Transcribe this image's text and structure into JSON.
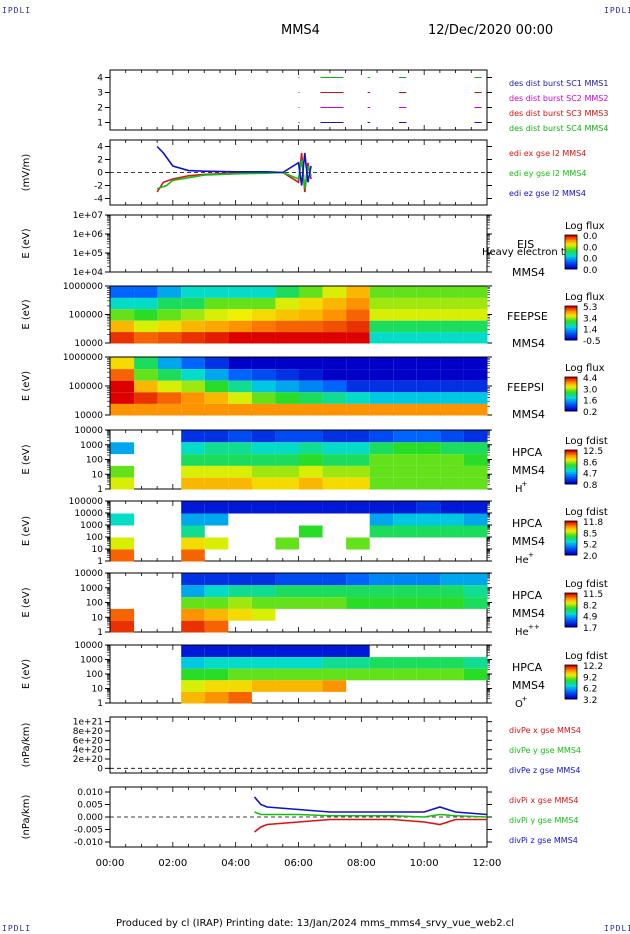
{
  "corners": {
    "tl": "IPDLI",
    "tr": "IPDLI",
    "bl": "IPDLI",
    "br": "IPDLI"
  },
  "header": {
    "spacecraft": "MMS4",
    "date": "12/Dec/2020 00:00"
  },
  "footer": {
    "text": "Produced by cl (IRAP)   Printing date: 13/Jan/2024   mms_mms4_srvy_vue_web2.cl"
  },
  "colors": {
    "mms1": "#1a1aa8",
    "mms2": "#d000d0",
    "mms3": "#d01010",
    "mms4": "#10b010",
    "red": "#e01010",
    "green": "#10c010",
    "blue": "#1010d0"
  },
  "chart_data": [
    {
      "type": "line",
      "id": "burst",
      "yticks": [
        "1",
        "2",
        "3",
        "4"
      ],
      "ylim": [
        0.5,
        4.5
      ],
      "legend": [
        "des dist burst SC1 MMS1",
        "des dist burst SC2 MMS2",
        "des dist burst SC3 MMS3",
        "des dist burst SC4 MMS4"
      ],
      "series": [
        {
          "name": "des dist burst SC4 MMS4",
          "y": 4,
          "segments": [
            [
              6.0,
              6.0
            ],
            [
              6.7,
              7.4
            ],
            [
              8.2,
              8.25
            ],
            [
              9.2,
              9.4
            ],
            [
              11.6,
              11.8
            ]
          ]
        },
        {
          "name": "des dist burst SC3 MMS3",
          "y": 3,
          "segments": [
            [
              6.0,
              6.0
            ],
            [
              6.7,
              7.4
            ],
            [
              8.2,
              8.25
            ],
            [
              9.2,
              9.4
            ],
            [
              11.6,
              11.8
            ]
          ]
        },
        {
          "name": "des dist burst SC2 MMS2",
          "y": 2,
          "segments": [
            [
              6.0,
              6.0
            ],
            [
              6.7,
              7.4
            ],
            [
              8.2,
              8.25
            ],
            [
              9.2,
              9.4
            ],
            [
              11.6,
              11.8
            ]
          ]
        },
        {
          "name": "des dist burst SC1 MMS1",
          "y": 1,
          "segments": [
            [
              6.0,
              6.0
            ],
            [
              6.7,
              7.4
            ],
            [
              8.2,
              8.25
            ],
            [
              9.2,
              9.4
            ],
            [
              11.6,
              11.8
            ]
          ]
        }
      ]
    },
    {
      "type": "line",
      "id": "edi",
      "ylabel": "(mV/m)",
      "yticks": [
        "-4",
        "-2",
        "0",
        "2",
        "4"
      ],
      "ylim": [
        -5,
        5
      ],
      "legend": [
        "edi ex gse l2 MMS4",
        "edi ey gse l2 MMS4",
        "edi ez gse l2 MMS4"
      ],
      "series": [
        {
          "name": "edi ex gse l2 MMS4",
          "x": [
            1.5,
            1.7,
            2.0,
            2.5,
            3.0,
            4.0,
            5.0,
            5.5,
            6.0,
            6.1,
            6.2,
            6.3,
            6.4
          ],
          "y": [
            -3.0,
            -1.5,
            -1.0,
            -0.5,
            -0.3,
            -0.1,
            0,
            0,
            -1.5,
            3.0,
            -3.0,
            1.5,
            -1.0
          ]
        },
        {
          "name": "edi ey gse l2 MMS4",
          "x": [
            1.5,
            1.8,
            2.0,
            2.5,
            3.0,
            4.0,
            5.0,
            5.5,
            6.0,
            6.1,
            6.2,
            6.3,
            6.4
          ],
          "y": [
            -2.5,
            -2.0,
            -1.2,
            -0.8,
            -0.4,
            -0.2,
            -0.1,
            0,
            -1.0,
            2.0,
            -2.5,
            1.0,
            -0.5
          ]
        },
        {
          "name": "edi ez gse l2 MMS4",
          "x": [
            1.5,
            1.7,
            2.0,
            2.5,
            3.0,
            4.0,
            5.0,
            5.5,
            6.0,
            6.1,
            6.2,
            6.3,
            6.4
          ],
          "y": [
            4.0,
            3.0,
            1.0,
            0.3,
            0.2,
            0.1,
            0.1,
            0,
            1.5,
            -2.0,
            3.0,
            -1.5,
            1.0
          ]
        }
      ]
    },
    {
      "type": "heatmap",
      "id": "eis",
      "ylabel": "E (eV)",
      "yticks": [
        "1e+04",
        "1e+05",
        "1e+06",
        "1e+07"
      ],
      "instrument": [
        "EIS",
        "Heavy electron to",
        "MMS4"
      ],
      "cbar_title": "Log flux",
      "cbar_ticks": [
        "0.0",
        "0.0",
        "0.0",
        "0.0"
      ],
      "cells": []
    },
    {
      "type": "heatmap",
      "id": "feepse",
      "ylabel": "E (eV)",
      "yticks": [
        "10000",
        "100000",
        "1000000"
      ],
      "instrument": [
        "FEEPSE",
        "MMS4"
      ],
      "cbar_title": "Log flux",
      "cbar_ticks": [
        "5.3",
        "3.4",
        "1.4",
        "-0.5"
      ],
      "cells": [
        [
          0.2,
          0.2,
          0.3,
          0.4,
          0.4,
          0.4,
          0.4,
          0.5,
          0.6,
          0.7,
          0.8,
          0.6,
          0.6,
          0.6,
          0.6,
          0.6
        ],
        [
          0.4,
          0.4,
          0.5,
          0.5,
          0.6,
          0.6,
          0.6,
          0.7,
          0.75,
          0.8,
          0.85,
          0.65,
          0.65,
          0.65,
          0.65,
          0.65
        ],
        [
          0.6,
          0.55,
          0.6,
          0.65,
          0.7,
          0.72,
          0.75,
          0.78,
          0.8,
          0.85,
          0.9,
          0.7,
          0.7,
          0.7,
          0.7,
          0.7
        ],
        [
          0.8,
          0.7,
          0.75,
          0.8,
          0.82,
          0.85,
          0.88,
          0.9,
          0.9,
          0.92,
          0.95,
          0.5,
          0.5,
          0.5,
          0.5,
          0.5
        ],
        [
          0.95,
          0.9,
          0.92,
          0.95,
          0.97,
          1,
          1,
          1,
          1,
          1,
          1,
          0.4,
          0.4,
          0.4,
          0.4,
          0.4
        ]
      ]
    },
    {
      "type": "heatmap",
      "id": "feepsi",
      "ylabel": "E (eV)",
      "yticks": [
        "10000",
        "100000",
        "1000000"
      ],
      "instrument": [
        "FEEPSI",
        "MMS4"
      ],
      "cbar_title": "Log flux",
      "cbar_ticks": [
        "4.4",
        "3.0",
        "1.6",
        "0.2"
      ],
      "cells": [
        [
          0.75,
          0.5,
          0.3,
          0.2,
          0.1,
          0.0,
          0.0,
          0.0,
          0.0,
          0.0,
          0.0,
          0.0,
          0.0,
          0.0,
          0.0,
          0.0
        ],
        [
          0.9,
          0.6,
          0.5,
          0.4,
          0.3,
          0.2,
          0.15,
          0.1,
          0.05,
          0.0,
          0.0,
          0.0,
          0.0,
          0.0,
          0.0,
          0.0
        ],
        [
          1,
          0.8,
          0.7,
          0.65,
          0.55,
          0.45,
          0.35,
          0.3,
          0.25,
          0.2,
          0.1,
          0.1,
          0.1,
          0.1,
          0.1,
          0.1
        ],
        [
          1,
          0.95,
          0.9,
          0.85,
          0.8,
          0.7,
          0.6,
          0.55,
          0.5,
          0.45,
          0.4,
          0.35,
          0.35,
          0.35,
          0.35,
          0.35
        ],
        [
          0.85,
          0.85,
          0.85,
          0.85,
          0.85,
          0.85,
          0.85,
          0.85,
          0.85,
          0.85,
          0.85,
          0.85,
          0.85,
          0.85,
          0.85,
          0.85
        ]
      ]
    },
    {
      "type": "heatmap",
      "id": "hpca_h",
      "ylabel": "E (eV)",
      "yticks": [
        "1",
        "10",
        "100",
        "1000",
        "10000"
      ],
      "instrument": [
        "HPCA",
        "MMS4",
        "H",
        "+"
      ],
      "cbar_title": "Log fdist",
      "cbar_ticks": [
        "12.5",
        "8.6",
        "4.7",
        "0.8"
      ],
      "cells": [
        [
          null,
          null,
          null,
          0.1,
          0.1,
          0.15,
          0.1,
          0.15,
          0.15,
          0.1,
          0.1,
          0.15,
          0.2,
          0.2,
          0.15,
          0.1
        ],
        [
          0.3,
          null,
          null,
          0.4,
          0.45,
          0.45,
          0.4,
          0.4,
          0.45,
          0.4,
          0.4,
          0.5,
          0.55,
          0.55,
          0.5,
          0.5
        ],
        [
          null,
          null,
          null,
          0.5,
          0.5,
          0.5,
          0.5,
          0.5,
          0.55,
          0.5,
          0.5,
          0.6,
          0.6,
          0.6,
          0.6,
          0.55
        ],
        [
          0.6,
          null,
          null,
          0.7,
          0.7,
          0.7,
          0.65,
          0.65,
          0.7,
          0.65,
          0.65,
          0.6,
          0.6,
          0.6,
          0.6,
          0.6
        ],
        [
          0.7,
          null,
          null,
          0.8,
          0.8,
          0.8,
          0.75,
          0.75,
          0.8,
          0.75,
          0.75,
          0.6,
          0.6,
          0.6,
          0.6,
          0.6
        ]
      ]
    },
    {
      "type": "heatmap",
      "id": "hpca_he",
      "ylabel": "E (eV)",
      "yticks": [
        "1",
        "10",
        "100",
        "1000",
        "10000",
        "100000"
      ],
      "instrument": [
        "HPCA",
        "MMS4",
        "He",
        "+"
      ],
      "cbar_title": "Log fdist",
      "cbar_ticks": [
        "11.8",
        "8.5",
        "5.2",
        "2.0"
      ],
      "cells": [
        [
          null,
          null,
          null,
          0.05,
          0.05,
          0.05,
          0.05,
          0.05,
          0.05,
          0.05,
          0.05,
          0.05,
          0.05,
          0.1,
          0.05,
          0.05
        ],
        [
          0.4,
          null,
          null,
          0.3,
          0.3,
          null,
          null,
          null,
          null,
          null,
          null,
          0.3,
          0.35,
          0.35,
          0.35,
          0.3
        ],
        [
          null,
          null,
          null,
          0.45,
          null,
          null,
          null,
          null,
          0.55,
          null,
          null,
          0.5,
          0.5,
          0.5,
          0.5,
          0.5
        ],
        [
          0.7,
          null,
          null,
          0.75,
          0.7,
          null,
          null,
          0.6,
          null,
          null,
          0.6,
          null,
          null,
          null,
          null,
          null
        ],
        [
          0.9,
          null,
          null,
          0.9,
          null,
          null,
          null,
          null,
          null,
          null,
          null,
          null,
          null,
          null,
          null,
          null
        ]
      ]
    },
    {
      "type": "heatmap",
      "id": "hpca_hepp",
      "ylabel": "E (eV)",
      "yticks": [
        "1",
        "10",
        "100",
        "1000",
        "10000"
      ],
      "instrument": [
        "HPCA",
        "MMS4",
        "He",
        "++"
      ],
      "cbar_title": "Log fdist",
      "cbar_ticks": [
        "11.5",
        "8.2",
        "4.9",
        "1.7"
      ],
      "cells": [
        [
          null,
          null,
          null,
          0.1,
          0.1,
          0.1,
          0.1,
          0.15,
          0.15,
          0.15,
          0.2,
          0.25,
          0.25,
          0.25,
          0.3,
          0.3
        ],
        [
          null,
          null,
          null,
          0.3,
          0.4,
          0.45,
          0.45,
          0.5,
          0.5,
          0.5,
          0.5,
          0.5,
          0.5,
          0.5,
          0.5,
          0.45
        ],
        [
          null,
          null,
          null,
          0.6,
          0.6,
          0.65,
          0.6,
          0.6,
          0.6,
          0.6,
          0.55,
          0.55,
          0.55,
          0.55,
          0.55,
          0.5
        ],
        [
          0.9,
          null,
          null,
          0.85,
          0.8,
          0.75,
          0.7,
          null,
          null,
          null,
          null,
          null,
          null,
          null,
          null,
          null
        ],
        [
          0.95,
          null,
          null,
          0.95,
          0.9,
          null,
          null,
          null,
          null,
          null,
          null,
          null,
          null,
          null,
          null,
          null
        ]
      ]
    },
    {
      "type": "heatmap",
      "id": "hpca_o",
      "ylabel": "E (eV)",
      "yticks": [
        "1",
        "10",
        "100",
        "1000",
        "10000"
      ],
      "instrument": [
        "HPCA",
        "MMS4",
        "O",
        "+"
      ],
      "cbar_title": "Log fdist",
      "cbar_ticks": [
        "12.2",
        "9.2",
        "6.2",
        "3.2"
      ],
      "cells": [
        [
          null,
          null,
          null,
          0.05,
          0.05,
          0.05,
          0.05,
          0.05,
          0.05,
          0.05,
          0.05,
          null,
          null,
          null,
          null,
          null
        ],
        [
          null,
          null,
          null,
          0.35,
          0.4,
          0.4,
          0.4,
          0.4,
          0.4,
          0.45,
          0.45,
          0.5,
          0.5,
          0.5,
          0.5,
          0.45
        ],
        [
          null,
          null,
          null,
          0.55,
          0.55,
          0.6,
          0.6,
          0.6,
          0.6,
          0.6,
          0.6,
          0.6,
          0.6,
          0.6,
          0.6,
          0.55
        ],
        [
          null,
          null,
          null,
          0.7,
          0.75,
          0.75,
          0.8,
          0.8,
          0.8,
          0.85,
          null,
          null,
          null,
          null,
          null,
          null
        ],
        [
          null,
          null,
          null,
          0.8,
          0.85,
          0.9,
          null,
          null,
          null,
          null,
          null,
          null,
          null,
          null,
          null,
          null
        ]
      ]
    },
    {
      "type": "line",
      "id": "divpe",
      "ylabel": "(nPa/km)",
      "yticks": [
        "0",
        "2e+20",
        "4e+20",
        "6e+20",
        "8e+20",
        "1e+21"
      ],
      "ylim": [
        -1e+20,
        1.1e+21
      ],
      "legend": [
        "divPe x gse MMS4",
        "divPe y gse MMS4",
        "divPe z gse MMS4"
      ],
      "series": []
    },
    {
      "type": "line",
      "id": "divpi",
      "ylabel": "(nPa/km)",
      "yticks": [
        "-0.010",
        "-0.005",
        "0.000",
        "0.005",
        "0.010"
      ],
      "ylim": [
        -0.012,
        0.012
      ],
      "legend": [
        "divPi x gse MMS4",
        "divPi y gse MMS4",
        "divPi z gse MMS4"
      ],
      "series": [
        {
          "name": "divPi x gse MMS4",
          "x": [
            4.6,
            4.8,
            5.0,
            6.0,
            7.0,
            8.0,
            9.0,
            10.0,
            10.5,
            11.0,
            12.0
          ],
          "y": [
            -0.006,
            -0.004,
            -0.003,
            -0.002,
            -0.001,
            -0.001,
            -0.001,
            -0.002,
            -0.003,
            -0.001,
            -0.001
          ]
        },
        {
          "name": "divPi y gse MMS4",
          "x": [
            4.6,
            4.8,
            5.0,
            6.0,
            7.0,
            8.0,
            9.0,
            10.0,
            10.5,
            11.0,
            12.0
          ],
          "y": [
            0.002,
            0.001,
            0.001,
            0.001,
            0.0005,
            0.0005,
            0.0005,
            0.0,
            0.001,
            0.0005,
            0.0
          ]
        },
        {
          "name": "divPi z gse MMS4",
          "x": [
            4.6,
            4.8,
            5.0,
            6.0,
            7.0,
            8.0,
            9.0,
            10.0,
            10.5,
            11.0,
            12.0
          ],
          "y": [
            0.008,
            0.005,
            0.004,
            0.003,
            0.002,
            0.002,
            0.002,
            0.002,
            0.004,
            0.002,
            0.001
          ]
        }
      ]
    }
  ],
  "xaxis": {
    "ticks": [
      "00:00",
      "02:00",
      "04:00",
      "06:00",
      "08:00",
      "10:00",
      "12:00"
    ],
    "xlim": [
      0,
      12
    ]
  }
}
